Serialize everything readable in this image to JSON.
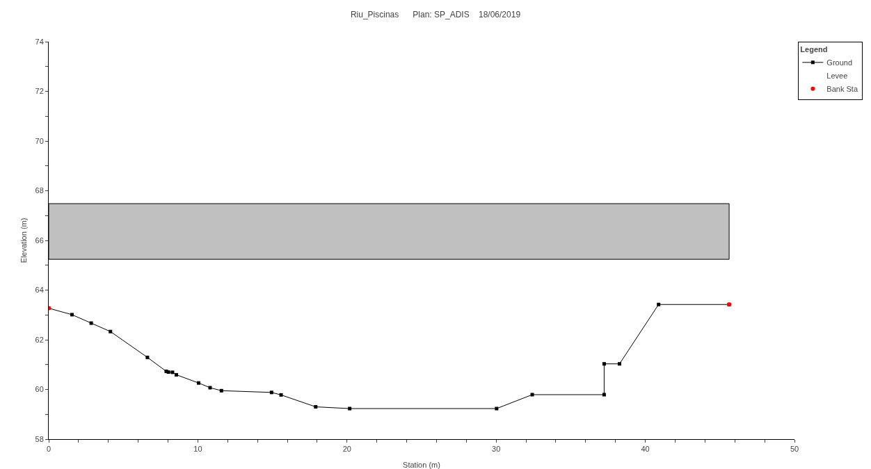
{
  "chart_data": {
    "type": "line",
    "title": "Riu_Piscinas      Plan: SP_ADIS    18/06/2019",
    "xlabel": "Station (m)",
    "ylabel": "Elevation (m)",
    "legend_title": "Legend",
    "legend": "top right",
    "grid": false,
    "xlim": [
      0,
      50
    ],
    "ylim": [
      58,
      74
    ],
    "xticks": [
      0,
      {
        "value": 2,
        "label": null
      },
      {
        "value": 4,
        "label": null
      },
      {
        "value": 6,
        "label": null
      },
      {
        "value": 8,
        "label": null
      },
      10,
      {
        "value": 12,
        "label": null
      },
      {
        "value": 14,
        "label": null
      },
      {
        "value": 16,
        "label": null
      },
      {
        "value": 18,
        "label": null
      },
      20,
      {
        "value": 22,
        "label": null
      },
      {
        "value": 24,
        "label": null
      },
      {
        "value": 26,
        "label": null
      },
      {
        "value": 28,
        "label": null
      },
      30,
      {
        "value": 32,
        "label": null
      },
      {
        "value": 34,
        "label": null
      },
      {
        "value": 36,
        "label": null
      },
      {
        "value": 38,
        "label": null
      },
      40,
      {
        "value": 42,
        "label": null
      },
      {
        "value": 44,
        "label": null
      },
      {
        "value": 46,
        "label": null
      },
      {
        "value": 48,
        "label": null
      },
      50
    ],
    "yticks": [
      58,
      {
        "value": 59,
        "label": null
      },
      60,
      {
        "value": 61,
        "label": null
      },
      62,
      {
        "value": 63,
        "label": null
      },
      64,
      {
        "value": 65,
        "label": null
      },
      66,
      {
        "value": 67,
        "label": null
      },
      68,
      {
        "value": 69,
        "label": null
      },
      70,
      {
        "value": 71,
        "label": null
      },
      72,
      {
        "value": 73,
        "label": null
      },
      74
    ],
    "series": [
      {
        "type": "line",
        "color": "#c0c0c0",
        "x": [
          0,
          45.62
        ],
        "lower": [
          65.24,
          65.24
        ],
        "upper": [
          67.48,
          67.48
        ],
        "values": [
          null,
          null
        ]
      },
      {
        "name": "Ground",
        "color": "#000000",
        "marker": "square",
        "line_style": "solid",
        "x": [
          0,
          1.56,
          2.85,
          4.14,
          6.62,
          7.88,
          8.03,
          8.3,
          8.56,
          10.05,
          10.82,
          11.58,
          14.94,
          15.58,
          17.9,
          20.18,
          30.03,
          32.42,
          37.24,
          37.24,
          38.27,
          40.89,
          45.62
        ],
        "values": [
          63.27,
          63.01,
          62.67,
          62.33,
          61.29,
          60.73,
          60.7,
          60.69,
          60.59,
          60.26,
          60.07,
          59.95,
          59.88,
          59.78,
          59.3,
          59.23,
          59.23,
          59.79,
          59.79,
          61.03,
          61.03,
          63.42,
          63.42
        ]
      },
      {
        "name": "Levee",
        "type": "line",
        "marker": "none"
      },
      {
        "name": "Bank Sta",
        "type": "scatter",
        "color": "#ff0000",
        "marker": "circle",
        "x": [
          0,
          45.62
        ],
        "values": [
          63.27,
          63.42
        ]
      }
    ]
  }
}
